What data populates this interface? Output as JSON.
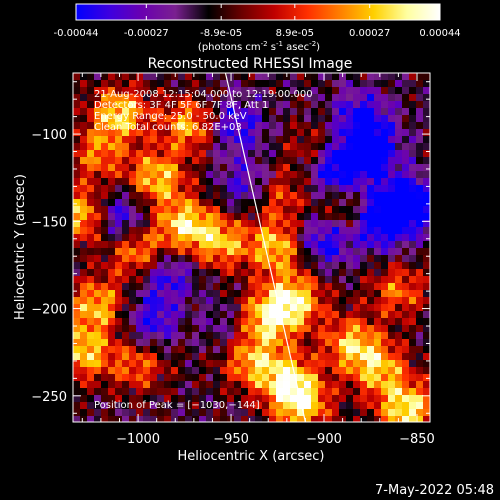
{
  "colorbar": {
    "tick_labels": [
      "-0.00044",
      "-0.00027",
      "-8.9e-05",
      "8.9e-05",
      "0.00027",
      "0.00044"
    ],
    "tick_values": [
      -0.00044,
      -0.00027,
      -8.9e-05,
      8.9e-05,
      0.00027,
      0.00044
    ],
    "range": [
      -0.00044,
      0.00044
    ],
    "units": "(photons cm",
    "units_exp1": "-2",
    "units_mid": " s",
    "units_exp2": "-1",
    "units_mid2": " asec",
    "units_exp3": "-2",
    "units_end": ")"
  },
  "chart_data": {
    "type": "heatmap",
    "title": "Reconstructed RHESSI Image",
    "xlabel": "Heliocentric X (arcsec)",
    "ylabel": "Heliocentric Y (arcsec)",
    "xlim": [
      -1035,
      -843
    ],
    "ylim": [
      -265,
      -65
    ],
    "x_ticks": [
      -1000,
      -950,
      -900,
      -850
    ],
    "x_tick_labels": [
      "−1000",
      "−950",
      "−900",
      "−850"
    ],
    "y_ticks": [
      -250,
      -200,
      -150,
      -100
    ],
    "y_tick_labels": [
      "−250",
      "−200",
      "−150",
      "−100"
    ],
    "annotations": [
      "21-Aug-2008 12:15:04.000 to 12:19:00.000",
      "Detectors: 3F 4F 5F 6F 7F 8F, Att 1",
      "Energy Range: 25.0 - 50.0 keV",
      "Clean    Total counts: 6.82E+03"
    ],
    "peak_label": "Position of Peak = [−1030,−144]",
    "peak": [
      -1030,
      -144
    ],
    "limb_line": [
      [
        -953,
        -65
      ],
      [
        -910,
        -265
      ]
    ],
    "colormap": [
      "#0000ff",
      "#3d00e0",
      "#6a00b0",
      "#7a2090",
      "#000000",
      "#6a0000",
      "#c00000",
      "#ff3000",
      "#ff8000",
      "#ffd000",
      "#ffffa0",
      "#ffffff"
    ],
    "hot_spots": [
      {
        "x": -1028,
        "y": -147,
        "v": 1.0
      },
      {
        "x": -1010,
        "y": -88,
        "v": 0.9
      },
      {
        "x": -990,
        "y": -125,
        "v": 0.85
      },
      {
        "x": -975,
        "y": -152,
        "v": 0.9
      },
      {
        "x": -1000,
        "y": -168,
        "v": 0.8
      },
      {
        "x": -972,
        "y": -95,
        "v": 0.8
      },
      {
        "x": -955,
        "y": -162,
        "v": 0.75
      },
      {
        "x": -925,
        "y": -165,
        "v": 0.85
      },
      {
        "x": -930,
        "y": -205,
        "v": 0.9
      },
      {
        "x": -915,
        "y": -195,
        "v": 0.85
      },
      {
        "x": -940,
        "y": -230,
        "v": 0.7
      },
      {
        "x": -920,
        "y": -240,
        "v": 0.8
      },
      {
        "x": -912,
        "y": -255,
        "v": 0.9
      },
      {
        "x": -885,
        "y": -220,
        "v": 0.8
      },
      {
        "x": -870,
        "y": -235,
        "v": 0.75
      },
      {
        "x": -855,
        "y": -258,
        "v": 1.0
      },
      {
        "x": -860,
        "y": -190,
        "v": 0.6
      },
      {
        "x": -1022,
        "y": -198,
        "v": 0.8
      },
      {
        "x": -1030,
        "y": -225,
        "v": 0.85
      },
      {
        "x": -1000,
        "y": -232,
        "v": 0.6
      },
      {
        "x": -925,
        "y": -135,
        "v": 0.6
      },
      {
        "x": -965,
        "y": -210,
        "v": 0.55
      },
      {
        "x": -1022,
        "y": -112,
        "v": 0.6
      },
      {
        "x": -905,
        "y": -110,
        "v": 0.5
      },
      {
        "x": -890,
        "y": -145,
        "v": 0.55
      }
    ],
    "cold_spots": [
      {
        "x": -1012,
        "y": -148,
        "v": -0.8
      },
      {
        "x": -895,
        "y": -120,
        "v": -0.9
      },
      {
        "x": -870,
        "y": -150,
        "v": -0.85
      },
      {
        "x": -875,
        "y": -110,
        "v": -0.8
      },
      {
        "x": -900,
        "y": -160,
        "v": -0.75
      },
      {
        "x": -855,
        "y": -140,
        "v": -0.9
      },
      {
        "x": -960,
        "y": -210,
        "v": -0.7
      },
      {
        "x": -985,
        "y": -180,
        "v": -0.6
      },
      {
        "x": -948,
        "y": -95,
        "v": -0.6
      },
      {
        "x": -880,
        "y": -90,
        "v": -0.6
      },
      {
        "x": -992,
        "y": -208,
        "v": -0.6
      },
      {
        "x": -940,
        "y": -130,
        "v": -0.55
      }
    ]
  },
  "footer": {
    "timestamp": "7-May-2022 05:48"
  }
}
